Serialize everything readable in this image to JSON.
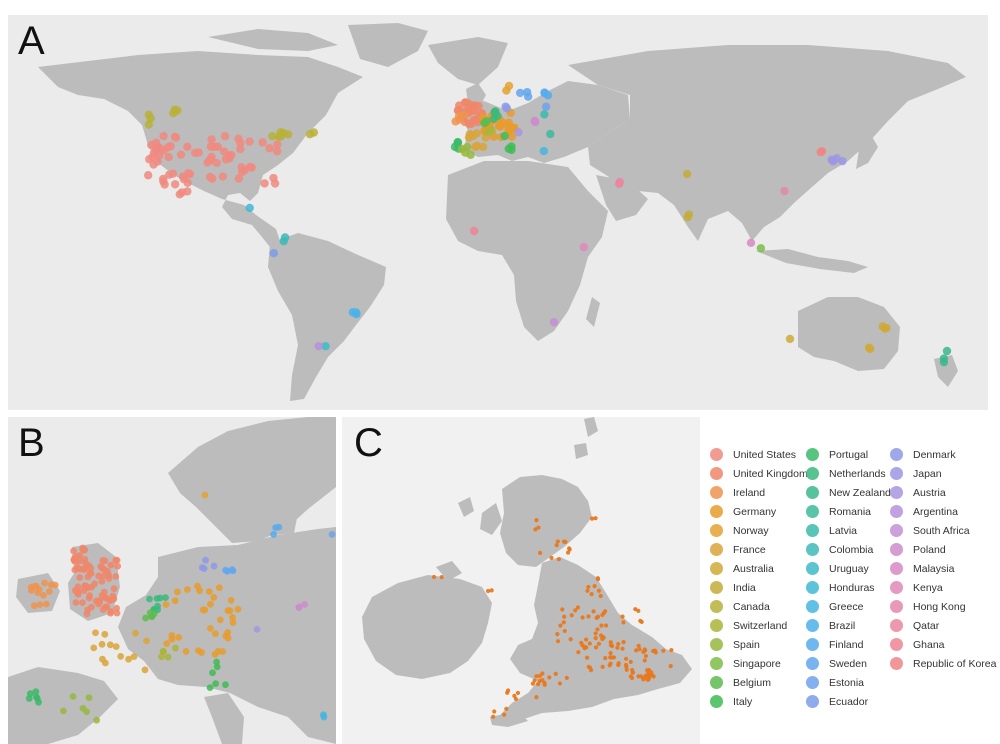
{
  "panels": {
    "a": {
      "label": "A"
    },
    "b": {
      "label": "B"
    },
    "c": {
      "label": "C"
    }
  },
  "legend": {
    "columns": [
      [
        {
          "name": "United States",
          "color": "#f08a80"
        },
        {
          "name": "United Kingdom",
          "color": "#f0866a"
        },
        {
          "name": "Ireland",
          "color": "#ee9450"
        },
        {
          "name": "Germany",
          "color": "#e89c2c"
        },
        {
          "name": "Norway",
          "color": "#e3a232"
        },
        {
          "name": "France",
          "color": "#d9a53a"
        },
        {
          "name": "Australia",
          "color": "#cfa937"
        },
        {
          "name": "India",
          "color": "#c3ad37"
        },
        {
          "name": "Canada",
          "color": "#b7b237"
        },
        {
          "name": "Switzerland",
          "color": "#a9b53a"
        },
        {
          "name": "Spain",
          "color": "#97b93e"
        },
        {
          "name": "Singapore",
          "color": "#7ebd46"
        },
        {
          "name": "Belgium",
          "color": "#5cbc4f"
        },
        {
          "name": "Italy",
          "color": "#3fbc55"
        }
      ],
      [
        {
          "name": "Portugal",
          "color": "#3aba6a"
        },
        {
          "name": "Netherlands",
          "color": "#39b97c"
        },
        {
          "name": "New Zealand",
          "color": "#3ab98b"
        },
        {
          "name": "Romania",
          "color": "#3bba9b"
        },
        {
          "name": "Latvia",
          "color": "#3cbaab"
        },
        {
          "name": "Colombia",
          "color": "#3dbab9"
        },
        {
          "name": "Uruguay",
          "color": "#3dbac7"
        },
        {
          "name": "Honduras",
          "color": "#3fb8d4"
        },
        {
          "name": "Greece",
          "color": "#44b5e0"
        },
        {
          "name": "Brazil",
          "color": "#4bb1e8"
        },
        {
          "name": "Finland",
          "color": "#56acec"
        },
        {
          "name": "Sweden",
          "color": "#62a7ed"
        },
        {
          "name": "Estonia",
          "color": "#6fa2ec"
        },
        {
          "name": "Ecuador",
          "color": "#7b9ce8"
        }
      ],
      [
        {
          "name": "Denmark",
          "color": "#8d99e6"
        },
        {
          "name": "Japan",
          "color": "#9a98e4"
        },
        {
          "name": "Austria",
          "color": "#a795e0"
        },
        {
          "name": "Argentina",
          "color": "#b592db"
        },
        {
          "name": "South Africa",
          "color": "#c28fd5"
        },
        {
          "name": "Poland",
          "color": "#cd8ccd"
        },
        {
          "name": "Malaysia",
          "color": "#d78ac4"
        },
        {
          "name": "Kenya",
          "color": "#df88b8"
        },
        {
          "name": "Hong Kong",
          "color": "#e587ac"
        },
        {
          "name": "Qatar",
          "color": "#ea869f"
        },
        {
          "name": "Ghana",
          "color": "#ed8593"
        },
        {
          "name": "Republic of Korea",
          "color": "#ef8587"
        }
      ]
    ]
  }
}
